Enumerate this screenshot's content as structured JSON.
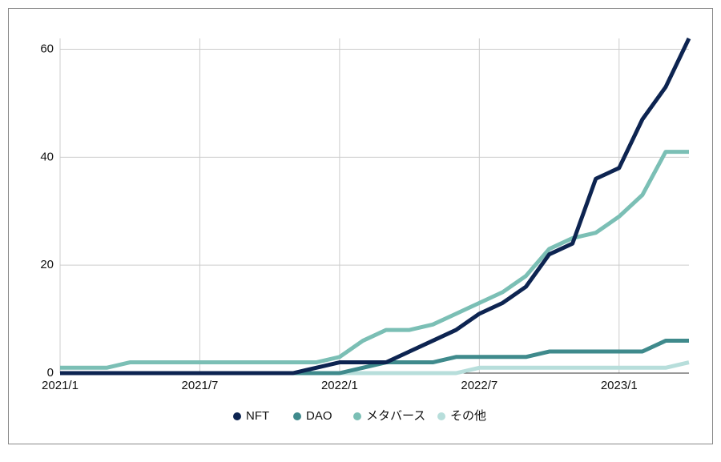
{
  "chart_data": {
    "type": "line",
    "categories": [
      "2021/1",
      null,
      null,
      null,
      null,
      null,
      "2021/7",
      null,
      null,
      null,
      null,
      null,
      "2022/1",
      null,
      null,
      null,
      null,
      null,
      "2022/7",
      null,
      null,
      null,
      null,
      null,
      "2023/1",
      null,
      null,
      null
    ],
    "series": [
      {
        "name": "NFT",
        "color": "#0d2451",
        "values": [
          0,
          0,
          0,
          0,
          0,
          0,
          0,
          0,
          0,
          0,
          0,
          1,
          2,
          2,
          2,
          4,
          6,
          8,
          11,
          13,
          16,
          22,
          24,
          36,
          38,
          47,
          53,
          62
        ]
      },
      {
        "name": "DAO",
        "color": "#3f8a8c",
        "values": [
          0,
          0,
          0,
          0,
          0,
          0,
          0,
          0,
          0,
          0,
          0,
          0,
          0,
          1,
          2,
          2,
          2,
          3,
          3,
          3,
          3,
          4,
          4,
          4,
          4,
          4,
          6,
          6
        ]
      },
      {
        "name": "メタバース",
        "color": "#7bbfb5",
        "values": [
          1,
          1,
          1,
          2,
          2,
          2,
          2,
          2,
          2,
          2,
          2,
          2,
          3,
          6,
          8,
          8,
          9,
          11,
          13,
          15,
          18,
          23,
          25,
          26,
          29,
          33,
          41,
          41
        ]
      },
      {
        "name": "その他",
        "color": "#b7dedb",
        "values": [
          0,
          0,
          0,
          0,
          0,
          0,
          0,
          0,
          0,
          0,
          0,
          0,
          0,
          0,
          0,
          0,
          0,
          0,
          1,
          1,
          1,
          1,
          1,
          1,
          1,
          1,
          1,
          2
        ]
      }
    ],
    "ylim": [
      0,
      62
    ],
    "yticks": [
      0,
      20,
      40,
      60
    ],
    "grid": true,
    "legend": "bottom"
  }
}
